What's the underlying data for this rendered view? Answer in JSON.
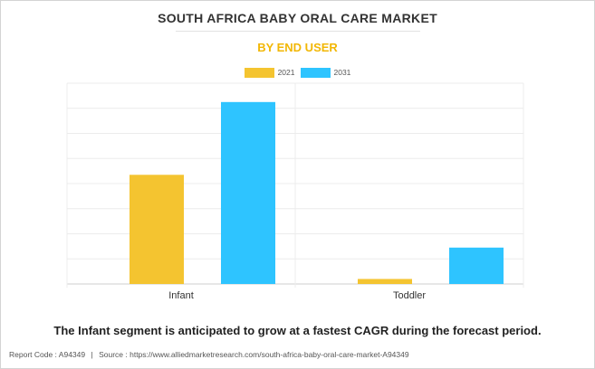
{
  "title": "SOUTH AFRICA BABY ORAL CARE MARKET",
  "subtitle": "BY END USER",
  "caption": "The Infant segment is anticipated to grow at a fastest CAGR during the forecast period.",
  "footer": {
    "report_code": "Report Code : A94349",
    "separator": "|",
    "source": "Source : https://www.alliedmarketresearch.com/south-africa-baby-oral-care-market-A94349"
  },
  "colors": {
    "2021": "#f4c430",
    "2031": "#2ec4ff",
    "title": "#333333",
    "subtitle": "#f2b705"
  },
  "chart_data": {
    "type": "bar",
    "title": "SOUTH AFRICA BABY ORAL CARE MARKET",
    "subtitle": "BY END USER",
    "categories": [
      "Infant",
      "Toddler"
    ],
    "series": [
      {
        "name": "2021",
        "values": [
          43.5,
          2.0
        ]
      },
      {
        "name": "2031",
        "values": [
          72.5,
          14.5
        ]
      }
    ],
    "xlabel": "",
    "ylabel": "",
    "ylim": [
      0,
      80
    ],
    "grid": true,
    "legend": "top-center",
    "tick_labels_visible": false
  }
}
